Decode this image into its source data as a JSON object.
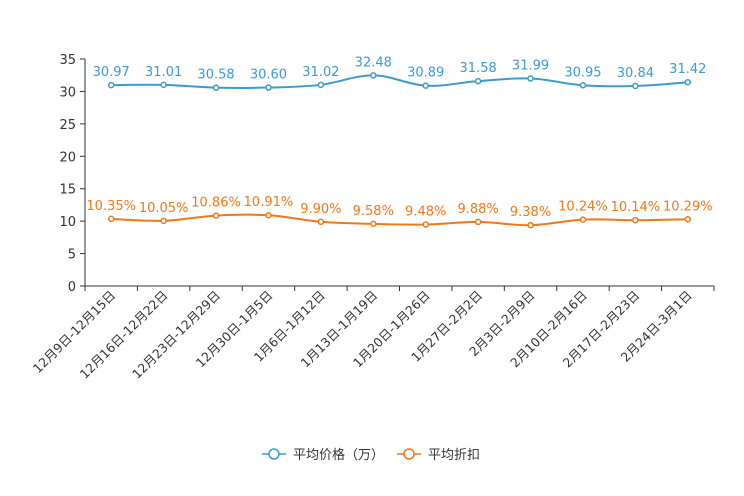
{
  "chart_data": {
    "type": "line",
    "categories": [
      "12月9日-12月15日",
      "12月16日-12月22日",
      "12月23日-12月29日",
      "12月30日-1月5日",
      "1月6日-1月12日",
      "1月13日-1月19日",
      "1月20日-1月26日",
      "1月27日-2月2日",
      "2月3日-2月9日",
      "2月10日-2月16日",
      "2月17日-2月23日",
      "2月24日-3月1日"
    ],
    "ylim": [
      0,
      35
    ],
    "yticks": [
      0,
      5,
      10,
      15,
      20,
      25,
      30,
      35
    ],
    "series": [
      {
        "name": "平均价格（万）",
        "color": "#3d9ad1",
        "values": [
          30.97,
          31.01,
          30.58,
          30.6,
          31.02,
          32.48,
          30.89,
          31.58,
          31.99,
          30.95,
          30.84,
          31.42
        ],
        "labels": [
          "30.97",
          "31.01",
          "30.58",
          "30.60",
          "31.02",
          "32.48",
          "30.89",
          "31.58",
          "31.99",
          "30.95",
          "30.84",
          "31.42"
        ]
      },
      {
        "name": "平均折扣",
        "color": "#f07818",
        "values": [
          10.35,
          10.05,
          10.86,
          10.91,
          9.9,
          9.58,
          9.48,
          9.88,
          9.38,
          10.24,
          10.14,
          10.29
        ],
        "labels": [
          "10.35%",
          "10.05%",
          "10.86%",
          "10.91%",
          "9.90%",
          "9.58%",
          "9.48%",
          "9.88%",
          "9.38%",
          "10.24%",
          "10.14%",
          "10.29%"
        ]
      }
    ]
  }
}
